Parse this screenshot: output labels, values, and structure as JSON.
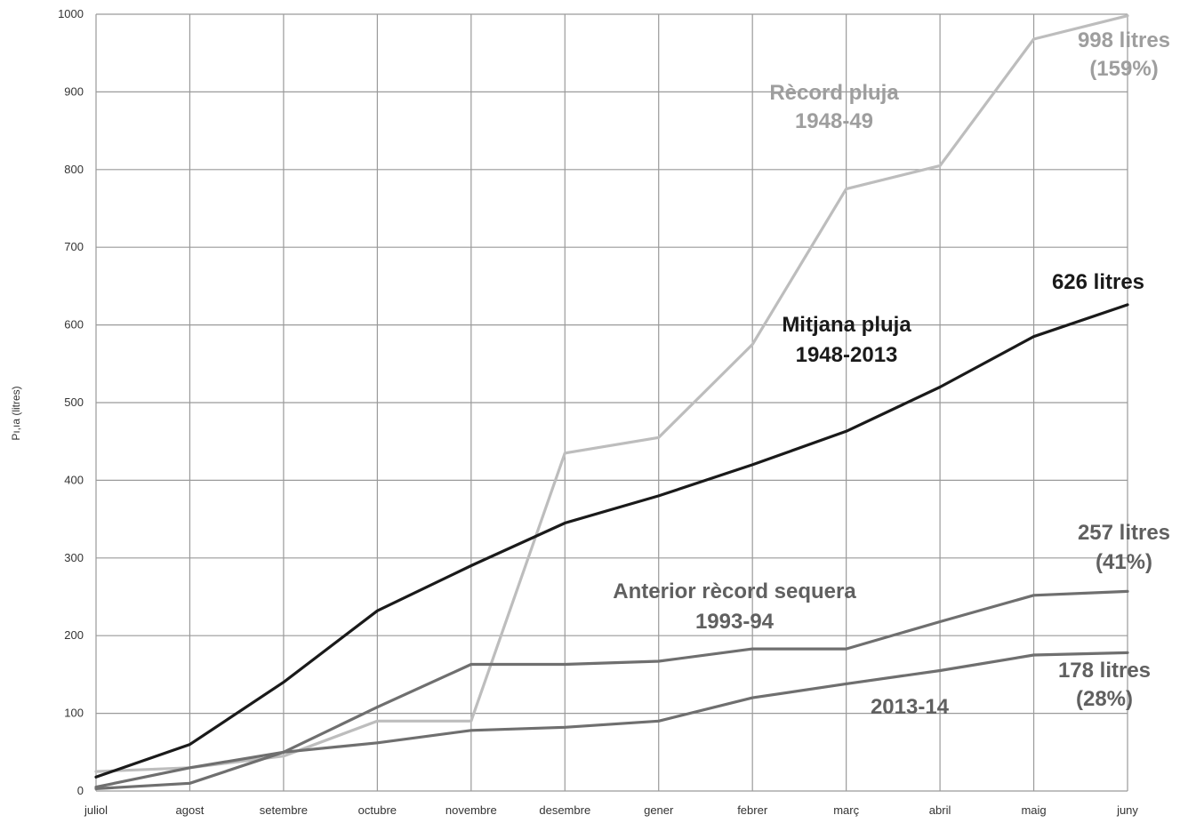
{
  "chart_data": {
    "type": "line",
    "title": "",
    "xlabel": "",
    "ylabel": "Pı,ıa (litres)",
    "categories": [
      "juliol",
      "agost",
      "setembre",
      "octubre",
      "novembre",
      "desembre",
      "gener",
      "febrer",
      "març",
      "abril",
      "maig",
      "juny"
    ],
    "ylim": [
      0,
      1000
    ],
    "yticks": [
      0,
      100,
      200,
      300,
      400,
      500,
      600,
      700,
      800,
      900,
      1000
    ],
    "grid": true,
    "series": [
      {
        "key": "record",
        "color": "#bdbdbd",
        "values": [
          25,
          30,
          45,
          90,
          90,
          435,
          455,
          575,
          775,
          805,
          968,
          998
        ]
      },
      {
        "key": "mitjana",
        "color": "#1a1a1a",
        "values": [
          18,
          60,
          140,
          232,
          290,
          345,
          380,
          420,
          463,
          520,
          585,
          626
        ]
      },
      {
        "key": "sequera",
        "color": "#6f6f6f",
        "values": [
          3,
          10,
          50,
          108,
          163,
          163,
          167,
          183,
          183,
          218,
          252,
          257
        ]
      },
      {
        "key": "actual",
        "color": "#6f6f6f",
        "values": [
          5,
          30,
          50,
          62,
          78,
          82,
          90,
          120,
          138,
          155,
          175,
          178
        ]
      }
    ],
    "annotations": [
      {
        "key": "record_name",
        "lines": [
          "Rècord pluja",
          "1948-49"
        ],
        "color": "#9e9e9e"
      },
      {
        "key": "record_end",
        "lines": [
          "998 litres",
          "(159%)"
        ],
        "color": "#9e9e9e"
      },
      {
        "key": "mitjana_name",
        "lines": [
          "Mitjana pluja",
          "1948-2013"
        ],
        "color": "#1a1a1a"
      },
      {
        "key": "mitjana_end",
        "lines": [
          "626 litres"
        ],
        "color": "#1a1a1a"
      },
      {
        "key": "sequera_name",
        "lines": [
          "Anterior rècord sequera",
          "1993-94"
        ],
        "color": "#606060"
      },
      {
        "key": "sequera_end",
        "lines": [
          "257 litres",
          "(41%)"
        ],
        "color": "#606060"
      },
      {
        "key": "actual_name",
        "lines": [
          "2013-14"
        ],
        "color": "#606060"
      },
      {
        "key": "actual_end",
        "lines": [
          "178 litres",
          "(28%)"
        ],
        "color": "#606060"
      }
    ]
  }
}
